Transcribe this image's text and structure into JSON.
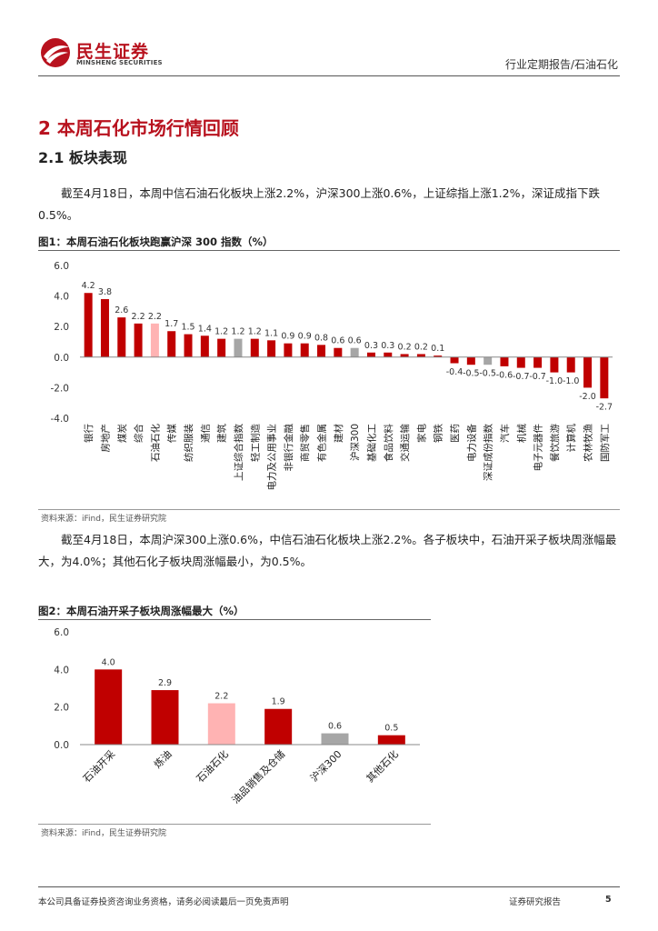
{
  "header": {
    "logo_cn": "民生证券",
    "logo_en": "MINSHENG SECURITIES",
    "category": "行业定期报告/石油石化"
  },
  "section": {
    "h1": "2 本周石化市场行情回顾",
    "h2": "2.1 板块表现",
    "para1": "截至4月18日，本周中信石油石化板块上涨2.2%，沪深300上涨0.6%，上证综指上涨1.2%，深证成指下跌0.5%。",
    "para2": "截至4月18日，本周沪深300上涨0.6%，中信石油石化板块上涨2.2%。各子板块中，石油开采子板块周涨幅最大，为4.0%；其他石化子板块周涨幅最小，为0.5%。"
  },
  "figure1": {
    "title": "图1：本周石油石化板块跑赢沪深 300 指数（%）",
    "source": "资料来源：iFind，民生证券研究院"
  },
  "figure2": {
    "title": "图2：本周石油开采子板块周涨幅最大（%）",
    "source": "资料来源：iFind，民生证券研究院"
  },
  "colors": {
    "brand_red": "#b8121e",
    "bar_red": "#c00000",
    "bar_pink": "#ffb3b3",
    "bar_gray": "#a6a6a6"
  },
  "chart_data": [
    {
      "type": "bar",
      "title": "本周石油石化板块跑赢沪深 300 指数（%）",
      "ylim": [
        -4.0,
        6.0
      ],
      "yticks": [
        "6.0",
        "4.0",
        "2.0",
        "0.0",
        "-2.0",
        "-4.0"
      ],
      "grid": false,
      "categories": [
        "银行",
        "房地产",
        "煤炭",
        "综合",
        "石油石化",
        "传媒",
        "纺织服装",
        "通信",
        "建筑",
        "上证综合指数",
        "轻工制造",
        "电力及公用事业",
        "非银行金融",
        "商贸零售",
        "有色金属",
        "建材",
        "沪深300",
        "基础化工",
        "食品饮料",
        "交通运输",
        "家电",
        "钢铁",
        "医药",
        "电力设备",
        "深证成份指数",
        "汽车",
        "机械",
        "电子元器件",
        "餐饮旅游",
        "计算机",
        "农林牧渔",
        "国防军工"
      ],
      "values": [
        4.2,
        3.8,
        2.6,
        2.2,
        2.2,
        1.7,
        1.5,
        1.4,
        1.2,
        1.2,
        1.2,
        1.1,
        0.9,
        0.9,
        0.8,
        0.6,
        0.6,
        0.3,
        0.3,
        0.2,
        0.2,
        0.1,
        -0.4,
        -0.5,
        -0.5,
        -0.6,
        -0.7,
        -0.7,
        -1.0,
        -1.0,
        -2.0,
        -2.7
      ],
      "labels": [
        "4.2",
        "3.8",
        "2.6",
        "2.2",
        "2.2",
        "1.7",
        "1.5",
        "1.4",
        "1.2",
        "1.2",
        "1.2",
        "1.1",
        "0.9",
        "0.9",
        "0.8",
        "0.6",
        "0.6",
        "0.3",
        "0.3",
        "0.2",
        "0.2",
        "0.1",
        "-0.4",
        "-0.5",
        "-0.5",
        "-0.6",
        "-0.7",
        "-0.7",
        "-1.0",
        "-1.0",
        "-2.0",
        "-2.7"
      ],
      "highlight": {
        "石油石化": "pink",
        "上证综合指数": "gray",
        "沪深300": "gray",
        "深证成份指数": "gray"
      }
    },
    {
      "type": "bar",
      "title": "本周石油开采子板块周涨幅最大（%）",
      "ylim": [
        0.0,
        6.0
      ],
      "yticks": [
        "6.0",
        "4.0",
        "2.0",
        "0.0"
      ],
      "grid": false,
      "categories": [
        "石油开采",
        "炼油",
        "石油石化",
        "油品销售及仓储",
        "沪深300",
        "其他石化"
      ],
      "values": [
        4.0,
        2.9,
        2.2,
        1.9,
        0.6,
        0.5
      ],
      "labels": [
        "4.0",
        "2.9",
        "2.2",
        "1.9",
        "0.6",
        "0.5"
      ],
      "highlight": {
        "石油石化": "pink",
        "沪深300": "gray"
      }
    }
  ],
  "footer": {
    "disclaimer": "本公司具备证券投资咨询业务资格，请务必阅读最后一页免责声明",
    "report_type": "证券研究报告",
    "page": "5"
  }
}
